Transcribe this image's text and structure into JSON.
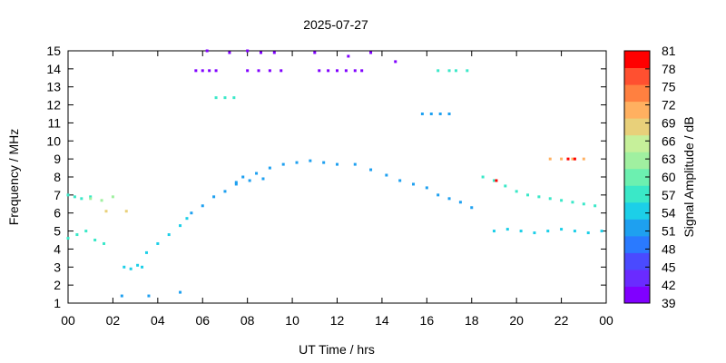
{
  "chart_data": {
    "type": "scatter",
    "title": "2025-07-27",
    "xlabel": "UT Time / hrs",
    "ylabel": "Frequency / MHz",
    "colorbar_label": "Signal Amplitude / dB",
    "xlim": [
      0,
      24
    ],
    "ylim": [
      1,
      15
    ],
    "x_ticks": [
      "00",
      "02",
      "04",
      "06",
      "08",
      "10",
      "12",
      "14",
      "16",
      "18",
      "20",
      "22",
      "00"
    ],
    "y_ticks": [
      "1",
      "2",
      "3",
      "4",
      "5",
      "6",
      "7",
      "8",
      "9",
      "10",
      "11",
      "12",
      "13",
      "14",
      "15"
    ],
    "colorbar_range": [
      39,
      81
    ],
    "colorbar_ticks": [
      "81",
      "78",
      "75",
      "72",
      "69",
      "66",
      "63",
      "60",
      "57",
      "54",
      "51",
      "48",
      "45",
      "42",
      "39"
    ],
    "colorbar_colors": [
      "#8000ff",
      "#6a2bff",
      "#4a4aff",
      "#2a7aff",
      "#1ea0f0",
      "#1ccfe8",
      "#3ae8c8",
      "#6cf0b0",
      "#a0f0a0",
      "#c6f09a",
      "#e8d07a",
      "#ffb060",
      "#ff8040",
      "#ff5030",
      "#ff0000"
    ],
    "grid": false,
    "point_groups": [
      {
        "x": [
          0.0,
          0.4,
          0.8,
          1.2,
          1.6
        ],
        "y": [
          4.6,
          4.8,
          5.0,
          4.5,
          4.3
        ],
        "value": 57
      },
      {
        "x": [
          0.0,
          0.3,
          0.6,
          1.0
        ],
        "y": [
          7.0,
          6.9,
          6.8,
          6.9
        ],
        "value": 57
      },
      {
        "x": [
          1.0,
          1.5,
          2.0
        ],
        "y": [
          6.8,
          6.7,
          6.9
        ],
        "value": 63
      },
      {
        "x": [
          1.7,
          2.6
        ],
        "y": [
          6.1,
          6.1
        ],
        "value": 69
      },
      {
        "x": [
          2.5,
          2.8,
          3.1,
          3.3
        ],
        "y": [
          3.0,
          2.9,
          3.1,
          3.0
        ],
        "value": 54
      },
      {
        "x": [
          3.5,
          4.0,
          4.5,
          5.0,
          5.3
        ],
        "y": [
          3.8,
          4.3,
          4.8,
          5.3,
          5.7
        ],
        "value": 54
      },
      {
        "x": [
          5.5,
          6.0,
          6.5,
          7.0,
          7.5
        ],
        "y": [
          6.0,
          6.4,
          6.9,
          7.2,
          7.6
        ],
        "value": 51
      },
      {
        "x": [
          7.5,
          7.8,
          8.1,
          8.4,
          8.7
        ],
        "y": [
          7.7,
          8.0,
          7.8,
          8.2,
          7.9
        ],
        "value": 51
      },
      {
        "x": [
          9.0,
          9.6,
          10.2,
          10.8,
          11.4,
          12.0
        ],
        "y": [
          8.5,
          8.7,
          8.8,
          8.9,
          8.8,
          8.7
        ],
        "value": 51
      },
      {
        "x": [
          12.8,
          13.5,
          14.2,
          14.8,
          15.4
        ],
        "y": [
          8.7,
          8.4,
          8.1,
          7.8,
          7.6
        ],
        "value": 51
      },
      {
        "x": [
          16.0,
          16.5,
          17.0,
          17.5,
          18.0
        ],
        "y": [
          7.4,
          7.0,
          6.8,
          6.6,
          6.3
        ],
        "value": 51
      },
      {
        "x": [
          18.5,
          19.0,
          19.5,
          20.0,
          20.5,
          21.0,
          21.5,
          22.0,
          22.5,
          23.0,
          23.5
        ],
        "y": [
          8.0,
          7.8,
          7.5,
          7.2,
          7.0,
          6.9,
          6.8,
          6.7,
          6.6,
          6.5,
          6.4
        ],
        "value": 57
      },
      {
        "x": [
          19.0,
          19.6,
          20.2,
          20.8,
          21.4,
          22.0,
          22.6,
          23.2,
          23.8
        ],
        "y": [
          5.0,
          5.1,
          5.0,
          4.9,
          5.0,
          5.1,
          5.0,
          4.9,
          5.0
        ],
        "value": 54
      },
      {
        "x": [
          21.5,
          22.0,
          22.5,
          23.0
        ],
        "y": [
          9.0,
          9.0,
          9.0,
          9.0
        ],
        "value": 72
      },
      {
        "x": [
          22.3,
          22.6
        ],
        "y": [
          9.0,
          9.0
        ],
        "value": 81
      },
      {
        "x": [
          19.1
        ],
        "y": [
          7.8
        ],
        "value": 81
      },
      {
        "x": [
          5.7,
          6.0,
          6.3,
          6.6,
          8.0,
          8.5,
          9.0,
          9.5,
          11.2,
          11.6,
          12.0,
          12.4,
          12.8,
          13.1
        ],
        "y": [
          13.9,
          13.9,
          13.9,
          13.9,
          13.9,
          13.9,
          13.9,
          13.9,
          13.9,
          13.9,
          13.9,
          13.9,
          13.9,
          13.9
        ],
        "value": 39
      },
      {
        "x": [
          6.2,
          7.2,
          8.0,
          8.6,
          9.2,
          11.0,
          12.5,
          13.5,
          14.6
        ],
        "y": [
          15.0,
          14.9,
          15.0,
          14.9,
          14.9,
          14.9,
          14.7,
          14.9,
          14.4
        ],
        "value": 39
      },
      {
        "x": [
          15.8,
          16.2,
          16.6,
          17.0
        ],
        "y": [
          11.5,
          11.5,
          11.5,
          11.5
        ],
        "value": 51
      },
      {
        "x": [
          16.5,
          17.0,
          17.3,
          17.8
        ],
        "y": [
          13.9,
          13.9,
          13.9,
          13.9
        ],
        "value": 57
      },
      {
        "x": [
          6.6,
          7.0,
          7.4
        ],
        "y": [
          12.4,
          12.4,
          12.4
        ],
        "value": 57
      },
      {
        "x": [
          2.4,
          3.6,
          5.0
        ],
        "y": [
          1.4,
          1.4,
          1.6
        ],
        "value": 51
      }
    ]
  }
}
